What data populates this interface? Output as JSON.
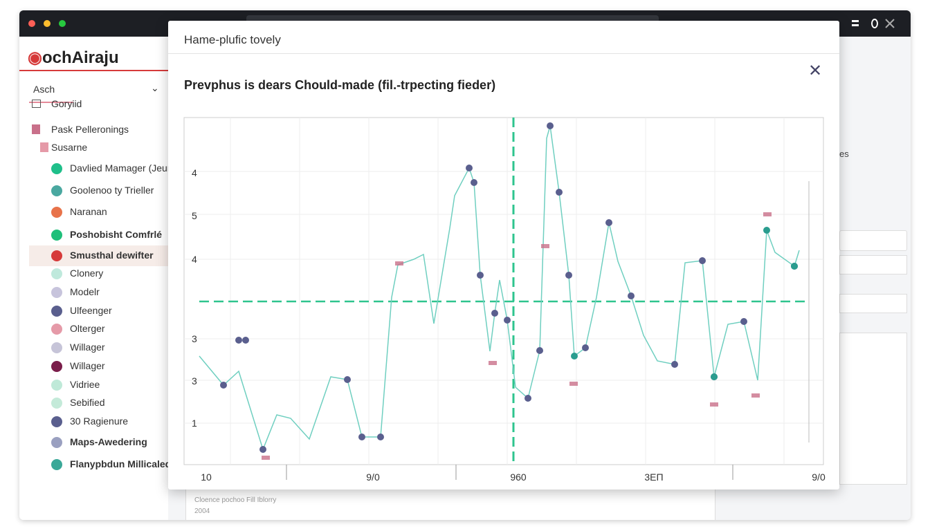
{
  "app": {
    "logo": "ochAiraju",
    "dropdown": "Asch",
    "side_partial": "es"
  },
  "sidebar": {
    "items": [
      {
        "label": "Goryiid",
        "icon": "box",
        "color": "#555555"
      },
      {
        "label": "Pask Pelleronings",
        "icon": "square",
        "color": "#c9708a"
      },
      {
        "label": "Susarne",
        "icon": "square",
        "color": "#e59aa8"
      },
      {
        "label": "Davlied Mamager (Jeur",
        "icon": "dot",
        "color": "#1fbf8a"
      },
      {
        "label": "Goolenoo ty Trieller",
        "icon": "dot",
        "color": "#4aa8a0"
      },
      {
        "label": "Naranan",
        "icon": "dot",
        "color": "#e8734a"
      },
      {
        "label": "Poshobisht Comfrlé",
        "icon": "dot",
        "color": "#1fbf7a",
        "bold": true
      },
      {
        "label": "Smusthal dewifter",
        "icon": "dot",
        "color": "#d63a3a",
        "bold": true,
        "selected": true
      },
      {
        "label": "Clonery",
        "icon": "dot",
        "color": "#bfe9dc"
      },
      {
        "label": "Modelr",
        "icon": "dot",
        "color": "#c7c4dc"
      },
      {
        "label": "Ulfeenger",
        "icon": "dot",
        "color": "#5a5f8e"
      },
      {
        "label": "Olterger",
        "icon": "dot",
        "color": "#e59aa8"
      },
      {
        "label": "Willager",
        "icon": "dot",
        "color": "#c6c4d8"
      },
      {
        "label": "Willager",
        "icon": "dot",
        "color": "#7a1d4a"
      },
      {
        "label": "Vidriee",
        "icon": "dot",
        "color": "#bfe9d8"
      },
      {
        "label": "Sebified",
        "icon": "dot",
        "color": "#c4ead9"
      },
      {
        "label": "30 Ragienure",
        "icon": "dot",
        "color": "#5a5f8e"
      },
      {
        "label": "Maps-Awedering",
        "icon": "dot",
        "color": "#9aa0c0",
        "bold": true
      },
      {
        "label": "Flanypbdun Millicaled",
        "icon": "dot",
        "color": "#3aa898",
        "bold": true
      }
    ]
  },
  "modal": {
    "header": "Hame-plufic tovely",
    "title": "Prevphus is dears Chould-made (fil.-trpecting fieder)",
    "y_labels": [
      "4",
      "5",
      "4",
      "3",
      "3",
      "1"
    ],
    "x_labels": [
      "10",
      "9/0",
      "960",
      "3EΠ",
      "9/0"
    ]
  },
  "footer": {
    "text": "Cloence pochoo Fill Iblorry",
    "year": "2004"
  }
}
